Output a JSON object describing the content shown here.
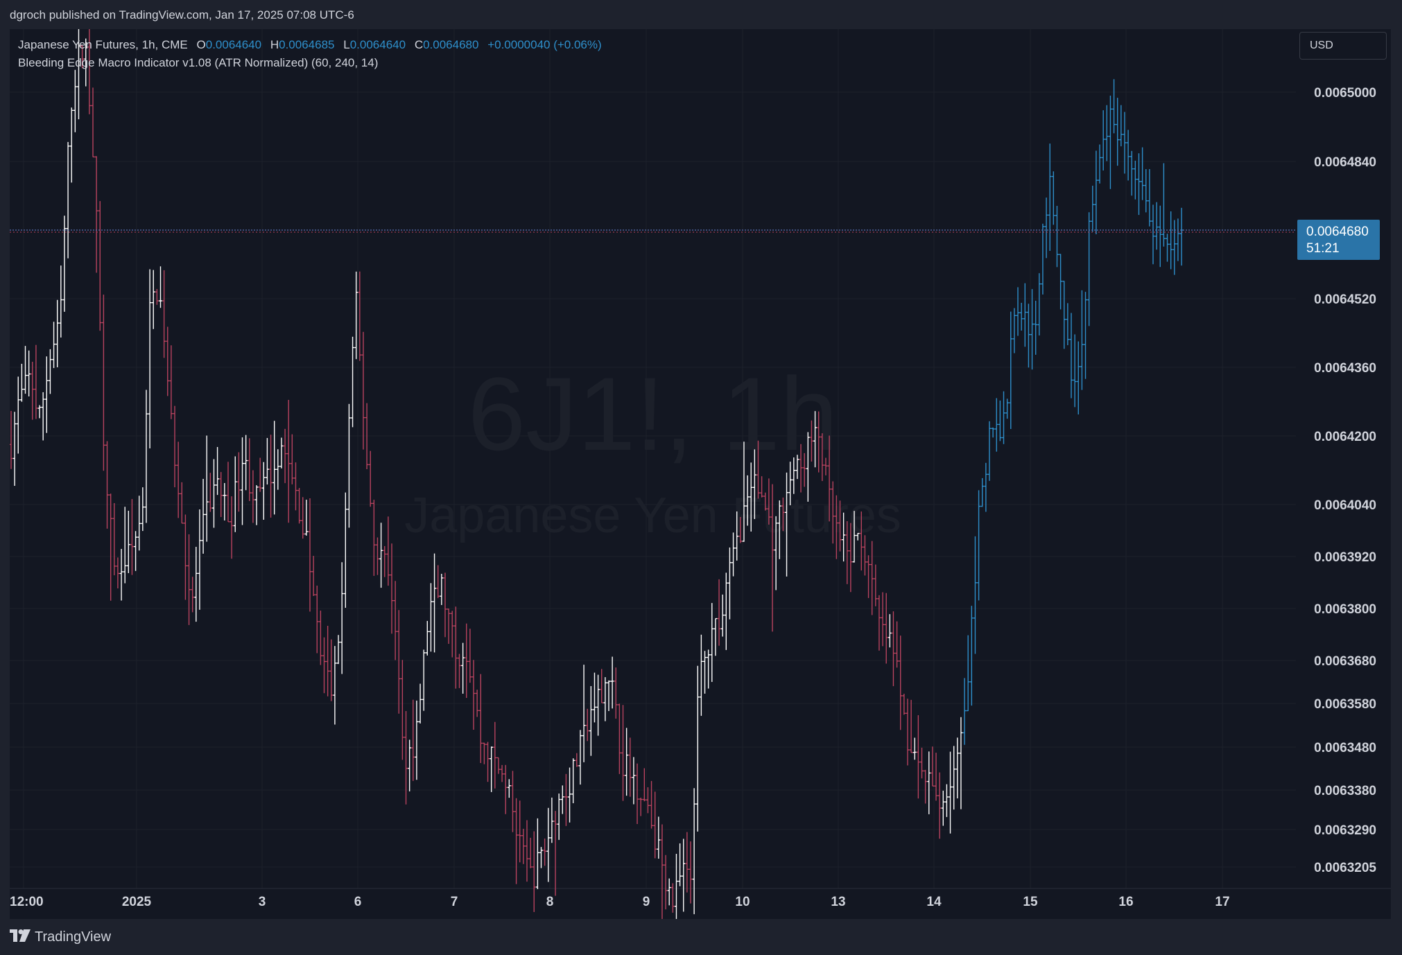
{
  "publish_bar": {
    "text": "dgroch published on TradingView.com, Jan 17, 2025 07:08 UTC-6"
  },
  "legend": {
    "symbol": "Japanese Yen Futures, 1h, CME",
    "open_label": "O",
    "open": "0.0064640",
    "high_label": "H",
    "high": "0.0064685",
    "low_label": "L",
    "low": "0.0064640",
    "close_label": "C",
    "close": "0.0064680",
    "change": "+0.0000040 (+0.06%)"
  },
  "indicator": {
    "label": "Bleeding Edge Macro Indicator v1.08 (ATR Normalized) (60, 240, 14)"
  },
  "currency_button": {
    "label": "USD"
  },
  "watermark": {
    "ticker": "6J1!, 1h",
    "name": "Japanese Yen Futures"
  },
  "price_tag": {
    "price": "0.0064680",
    "countdown": "51:21"
  },
  "footer": {
    "brand": "TradingView"
  },
  "colors": {
    "background": "#131722",
    "bear": "#b9435f",
    "bull": "#ffffff",
    "strong_bull": "#2e8fcb",
    "price_tag": "#2a74a8",
    "text": "#d1d4dc"
  },
  "chart_data": {
    "type": "ohlc",
    "title": "Japanese Yen Futures, 1h, CME",
    "yaxis_scale": "log",
    "y_ticks": [
      "0.0065000",
      "0.0064840",
      "0.0064520",
      "0.0064360",
      "0.0064200",
      "0.0064040",
      "0.0063920",
      "0.0063800",
      "0.0063680",
      "0.0063580",
      "0.0063480",
      "0.0063380",
      "0.0063290",
      "0.0063205"
    ],
    "ylim": [
      0.00632,
      0.00651
    ],
    "x_ticks": [
      "12:00",
      "2025",
      "3",
      "6",
      "7",
      "8",
      "9",
      "10",
      "13",
      "14",
      "15",
      "16",
      "17"
    ],
    "last_price": 0.006468,
    "price_path": [
      [
        0.0,
        0.006418
      ],
      [
        0.006,
        0.006428
      ],
      [
        0.015,
        0.006434
      ],
      [
        0.022,
        0.006424
      ],
      [
        0.03,
        0.006438
      ],
      [
        0.038,
        0.006446
      ],
      [
        0.046,
        0.006496
      ],
      [
        0.052,
        0.006508
      ],
      [
        0.058,
        0.00651
      ],
      [
        0.065,
        0.006482
      ],
      [
        0.072,
        0.00642
      ],
      [
        0.08,
        0.006388
      ],
      [
        0.088,
        0.00639
      ],
      [
        0.095,
        0.006395
      ],
      [
        0.102,
        0.006402
      ],
      [
        0.108,
        0.00645
      ],
      [
        0.115,
        0.006455
      ],
      [
        0.122,
        0.00643
      ],
      [
        0.13,
        0.006408
      ],
      [
        0.14,
        0.00638
      ],
      [
        0.15,
        0.0064
      ],
      [
        0.16,
        0.00641
      ],
      [
        0.17,
        0.0064
      ],
      [
        0.18,
        0.006415
      ],
      [
        0.19,
        0.006405
      ],
      [
        0.2,
        0.00641
      ],
      [
        0.21,
        0.006418
      ],
      [
        0.22,
        0.006408
      ],
      [
        0.23,
        0.006395
      ],
      [
        0.24,
        0.00637
      ],
      [
        0.25,
        0.00636
      ],
      [
        0.258,
        0.006385
      ],
      [
        0.262,
        0.00642
      ],
      [
        0.268,
        0.006452
      ],
      [
        0.275,
        0.00642
      ],
      [
        0.282,
        0.006395
      ],
      [
        0.29,
        0.006392
      ],
      [
        0.298,
        0.00638
      ],
      [
        0.305,
        0.006345
      ],
      [
        0.315,
        0.00635
      ],
      [
        0.325,
        0.00638
      ],
      [
        0.335,
        0.006385
      ],
      [
        0.345,
        0.00637
      ],
      [
        0.355,
        0.00637
      ],
      [
        0.365,
        0.00635
      ],
      [
        0.375,
        0.006345
      ],
      [
        0.385,
        0.00634
      ],
      [
        0.395,
        0.006325
      ],
      [
        0.405,
        0.006318
      ],
      [
        0.415,
        0.006325
      ],
      [
        0.425,
        0.006335
      ],
      [
        0.435,
        0.00634
      ],
      [
        0.445,
        0.00635
      ],
      [
        0.455,
        0.006358
      ],
      [
        0.465,
        0.006366
      ],
      [
        0.475,
        0.006345
      ],
      [
        0.485,
        0.00634
      ],
      [
        0.495,
        0.006335
      ],
      [
        0.505,
        0.006322
      ],
      [
        0.515,
        0.006312
      ],
      [
        0.522,
        0.00632
      ],
      [
        0.528,
        0.006316
      ],
      [
        0.535,
        0.006365
      ],
      [
        0.542,
        0.00637
      ],
      [
        0.552,
        0.00638
      ],
      [
        0.56,
        0.00639
      ],
      [
        0.568,
        0.0064
      ],
      [
        0.576,
        0.00641
      ],
      [
        0.585,
        0.006405
      ],
      [
        0.593,
        0.006395
      ],
      [
        0.6,
        0.006405
      ],
      [
        0.608,
        0.006412
      ],
      [
        0.614,
        0.006412
      ],
      [
        0.62,
        0.006418
      ],
      [
        0.628,
        0.00642
      ],
      [
        0.636,
        0.006405
      ],
      [
        0.644,
        0.006395
      ],
      [
        0.652,
        0.006392
      ],
      [
        0.66,
        0.006398
      ],
      [
        0.668,
        0.006386
      ],
      [
        0.676,
        0.006375
      ],
      [
        0.684,
        0.006372
      ],
      [
        0.692,
        0.00636
      ],
      [
        0.7,
        0.006345
      ],
      [
        0.708,
        0.006342
      ],
      [
        0.716,
        0.006338
      ],
      [
        0.724,
        0.006335
      ],
      [
        0.73,
        0.00634
      ],
      [
        0.736,
        0.006345
      ],
      [
        0.742,
        0.006355
      ],
      [
        0.748,
        0.00638
      ],
      [
        0.752,
        0.0064
      ],
      [
        0.758,
        0.00641
      ],
      [
        0.762,
        0.006425
      ],
      [
        0.768,
        0.00642
      ],
      [
        0.774,
        0.006428
      ],
      [
        0.78,
        0.00645
      ],
      [
        0.788,
        0.006448
      ],
      [
        0.796,
        0.006442
      ],
      [
        0.802,
        0.00647
      ],
      [
        0.808,
        0.006478
      ],
      [
        0.814,
        0.006462
      ],
      [
        0.82,
        0.006445
      ],
      [
        0.826,
        0.00643
      ],
      [
        0.832,
        0.006435
      ],
      [
        0.838,
        0.00647
      ],
      [
        0.844,
        0.006478
      ],
      [
        0.85,
        0.00649
      ],
      [
        0.856,
        0.006494
      ],
      [
        0.862,
        0.006488
      ],
      [
        0.868,
        0.006485
      ],
      [
        0.874,
        0.006478
      ],
      [
        0.88,
        0.006476
      ],
      [
        0.886,
        0.00647
      ],
      [
        0.892,
        0.006465
      ],
      [
        0.898,
        0.006462
      ],
      [
        0.904,
        0.006466
      ],
      [
        0.91,
        0.006468
      ]
    ]
  }
}
